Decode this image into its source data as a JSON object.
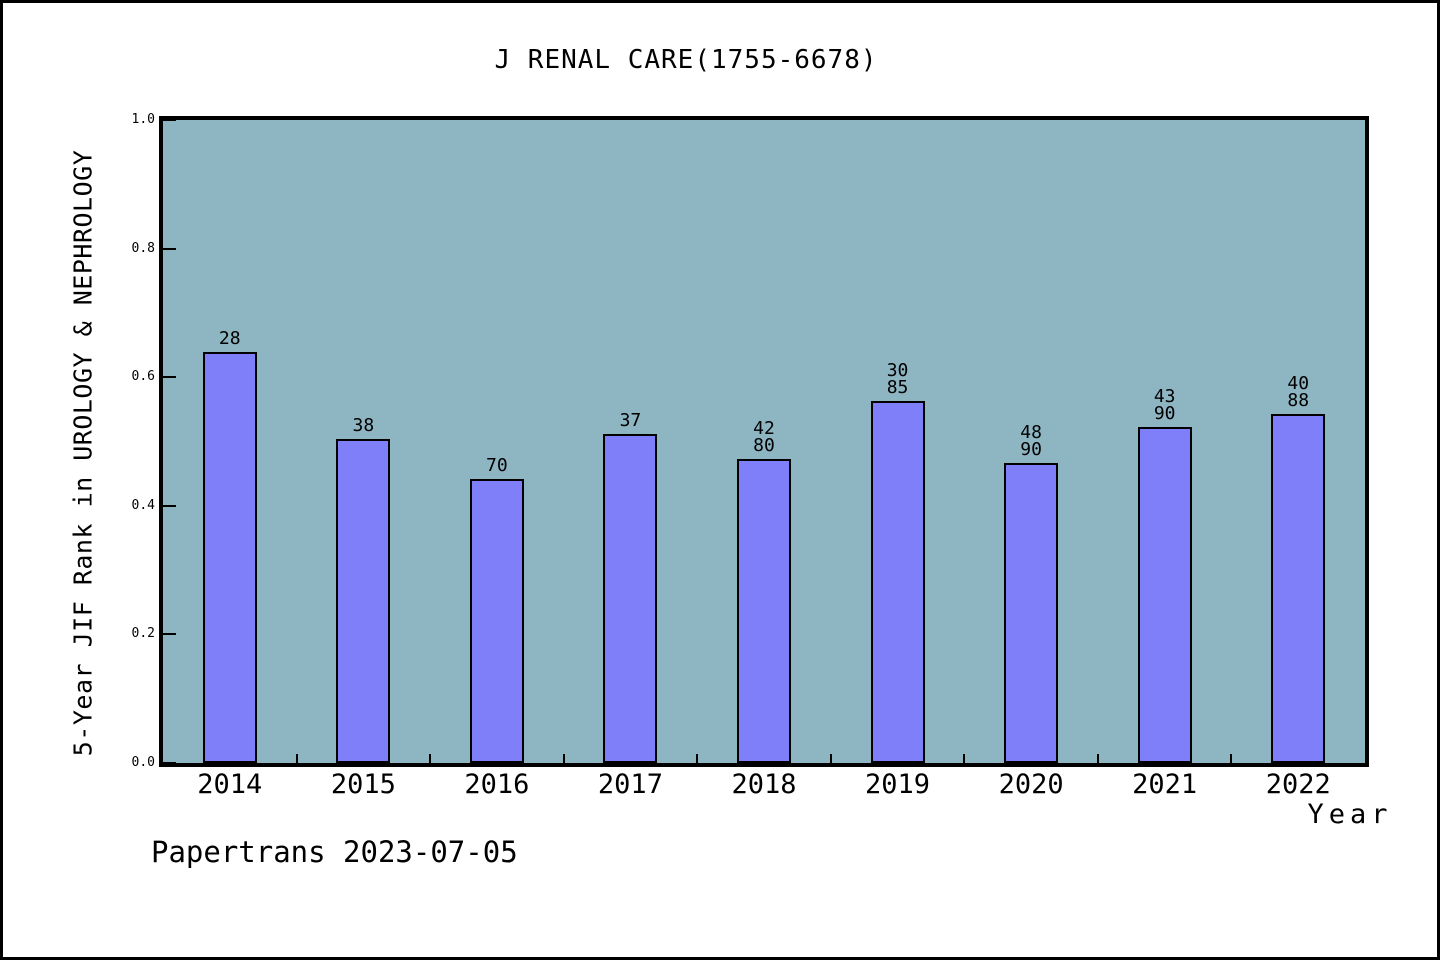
{
  "window": {
    "background": "#ffffff",
    "border_color": "#000000"
  },
  "footer": {
    "text": "Papertrans 2023-07-05"
  },
  "chart_data": {
    "type": "bar",
    "title": "J RENAL CARE(1755-6678)",
    "xlabel": "Year",
    "ylabel": "5-Year JIF Rank in UROLOGY & NEPHROLOGY",
    "categories": [
      "2014",
      "2015",
      "2016",
      "2017",
      "2018",
      "2019",
      "2020",
      "2021",
      "2022"
    ],
    "values": [
      0.639,
      0.504,
      0.441,
      0.512,
      0.473,
      0.563,
      0.467,
      0.522,
      0.542
    ],
    "bar_labels": [
      [
        "28"
      ],
      [
        "38"
      ],
      [
        "70"
      ],
      [
        "37"
      ],
      [
        "42",
        "80"
      ],
      [
        "30",
        "85"
      ],
      [
        "48",
        "90"
      ],
      [
        "43",
        "90"
      ],
      [
        "40",
        "88"
      ]
    ],
    "ylim": [
      0.0,
      1.0
    ],
    "ytick_labels": [
      "0.0",
      "0.2",
      "0.4",
      "0.6",
      "0.8",
      "1.0"
    ],
    "grid": false,
    "legend": "none",
    "colors": {
      "bar_fill": "#7f7ffa",
      "bar_edge": "#000000",
      "plot_background": "#8eb5c2",
      "text": "#000000"
    }
  }
}
